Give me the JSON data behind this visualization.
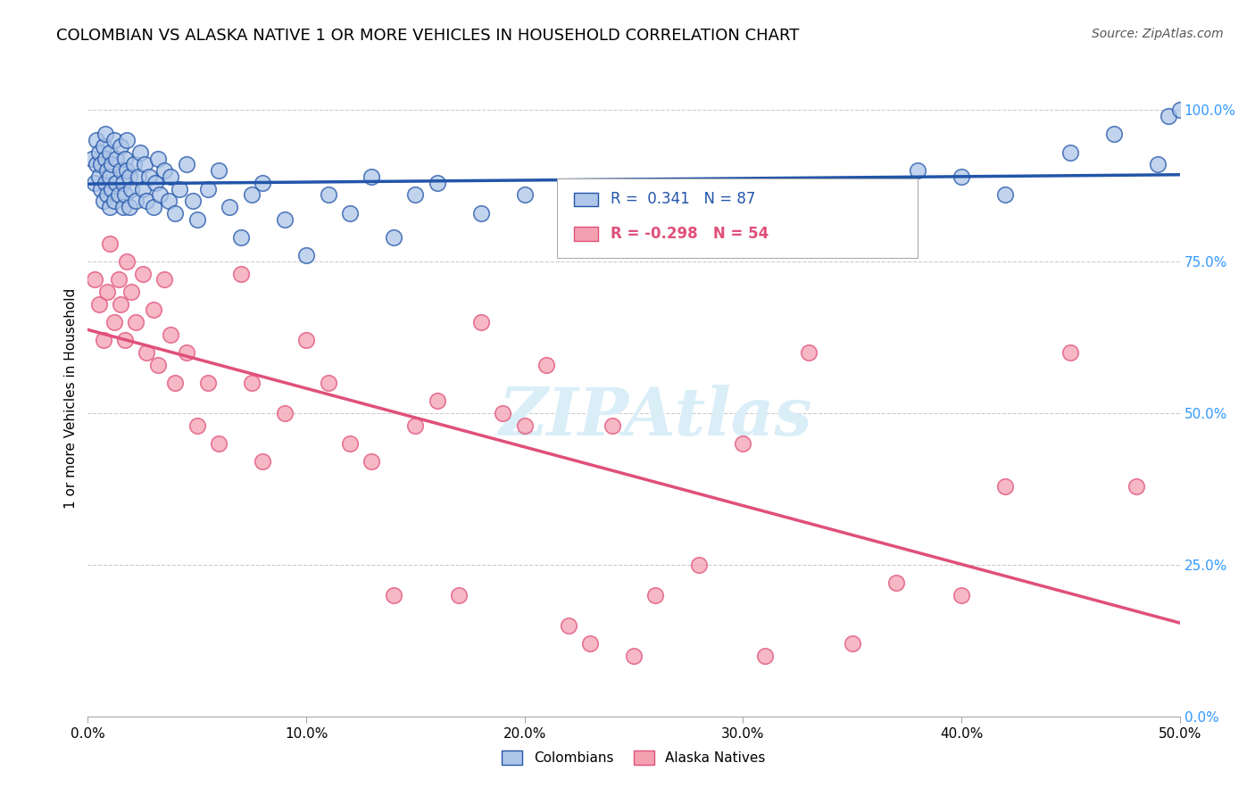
{
  "title": "COLOMBIAN VS ALASKA NATIVE 1 OR MORE VEHICLES IN HOUSEHOLD CORRELATION CHART",
  "source": "Source: ZipAtlas.com",
  "xlabel_ticks": [
    "0.0%",
    "10.0%",
    "20.0%",
    "30.0%",
    "40.0%",
    "50.0%"
  ],
  "xlabel_vals": [
    0.0,
    0.1,
    0.2,
    0.3,
    0.4,
    0.5
  ],
  "ylabel": "1 or more Vehicles in Household",
  "ylabel_ticks": [
    "0.0%",
    "25.0%",
    "50.0%",
    "75.0%",
    "100.0%"
  ],
  "ylabel_vals": [
    0.0,
    0.25,
    0.5,
    0.75,
    1.0
  ],
  "xlim": [
    0.0,
    0.5
  ],
  "ylim": [
    0.0,
    1.05
  ],
  "r_colombian": 0.341,
  "n_colombian": 87,
  "r_alaska": -0.298,
  "n_alaska": 54,
  "color_colombian": "#aec6e8",
  "color_alaska": "#f4a0b0",
  "line_color_colombian": "#2255aa",
  "line_color_alaska": "#e0507a",
  "watermark_color": "#daeef8",
  "legend_labels": [
    "Colombians",
    "Alaska Natives"
  ],
  "colombian_x": [
    0.002,
    0.003,
    0.004,
    0.004,
    0.005,
    0.005,
    0.006,
    0.006,
    0.007,
    0.007,
    0.008,
    0.008,
    0.008,
    0.009,
    0.009,
    0.01,
    0.01,
    0.01,
    0.011,
    0.011,
    0.012,
    0.012,
    0.013,
    0.013,
    0.014,
    0.015,
    0.015,
    0.016,
    0.016,
    0.017,
    0.017,
    0.018,
    0.018,
    0.019,
    0.019,
    0.02,
    0.021,
    0.022,
    0.023,
    0.024,
    0.025,
    0.026,
    0.027,
    0.028,
    0.03,
    0.031,
    0.032,
    0.033,
    0.035,
    0.037,
    0.038,
    0.04,
    0.042,
    0.045,
    0.048,
    0.05,
    0.055,
    0.06,
    0.065,
    0.07,
    0.075,
    0.08,
    0.09,
    0.1,
    0.11,
    0.12,
    0.13,
    0.14,
    0.15,
    0.16,
    0.18,
    0.2,
    0.22,
    0.24,
    0.26,
    0.29,
    0.31,
    0.34,
    0.36,
    0.38,
    0.4,
    0.42,
    0.45,
    0.47,
    0.49,
    0.495,
    0.5
  ],
  "colombian_y": [
    0.92,
    0.88,
    0.91,
    0.95,
    0.89,
    0.93,
    0.87,
    0.91,
    0.85,
    0.94,
    0.88,
    0.92,
    0.96,
    0.86,
    0.9,
    0.84,
    0.89,
    0.93,
    0.87,
    0.91,
    0.85,
    0.95,
    0.88,
    0.92,
    0.86,
    0.9,
    0.94,
    0.84,
    0.88,
    0.92,
    0.86,
    0.9,
    0.95,
    0.84,
    0.89,
    0.87,
    0.91,
    0.85,
    0.89,
    0.93,
    0.87,
    0.91,
    0.85,
    0.89,
    0.84,
    0.88,
    0.92,
    0.86,
    0.9,
    0.85,
    0.89,
    0.83,
    0.87,
    0.91,
    0.85,
    0.82,
    0.87,
    0.9,
    0.84,
    0.79,
    0.86,
    0.88,
    0.82,
    0.76,
    0.86,
    0.83,
    0.89,
    0.79,
    0.86,
    0.88,
    0.83,
    0.86,
    0.8,
    0.87,
    0.84,
    0.82,
    0.86,
    0.84,
    0.87,
    0.9,
    0.89,
    0.86,
    0.93,
    0.96,
    0.91,
    0.99,
    1.0
  ],
  "alaska_x": [
    0.003,
    0.005,
    0.007,
    0.009,
    0.01,
    0.012,
    0.014,
    0.015,
    0.017,
    0.018,
    0.02,
    0.022,
    0.025,
    0.027,
    0.03,
    0.032,
    0.035,
    0.038,
    0.04,
    0.045,
    0.05,
    0.055,
    0.06,
    0.07,
    0.075,
    0.08,
    0.09,
    0.1,
    0.11,
    0.12,
    0.13,
    0.14,
    0.15,
    0.16,
    0.17,
    0.18,
    0.19,
    0.2,
    0.21,
    0.22,
    0.23,
    0.24,
    0.25,
    0.26,
    0.28,
    0.3,
    0.31,
    0.33,
    0.35,
    0.37,
    0.4,
    0.42,
    0.45,
    0.48
  ],
  "alaska_y": [
    0.72,
    0.68,
    0.62,
    0.7,
    0.78,
    0.65,
    0.72,
    0.68,
    0.62,
    0.75,
    0.7,
    0.65,
    0.73,
    0.6,
    0.67,
    0.58,
    0.72,
    0.63,
    0.55,
    0.6,
    0.48,
    0.55,
    0.45,
    0.73,
    0.55,
    0.42,
    0.5,
    0.62,
    0.55,
    0.45,
    0.42,
    0.2,
    0.48,
    0.52,
    0.2,
    0.65,
    0.5,
    0.48,
    0.58,
    0.15,
    0.12,
    0.48,
    0.1,
    0.2,
    0.25,
    0.45,
    0.1,
    0.6,
    0.12,
    0.22,
    0.2,
    0.38,
    0.6,
    0.38
  ]
}
